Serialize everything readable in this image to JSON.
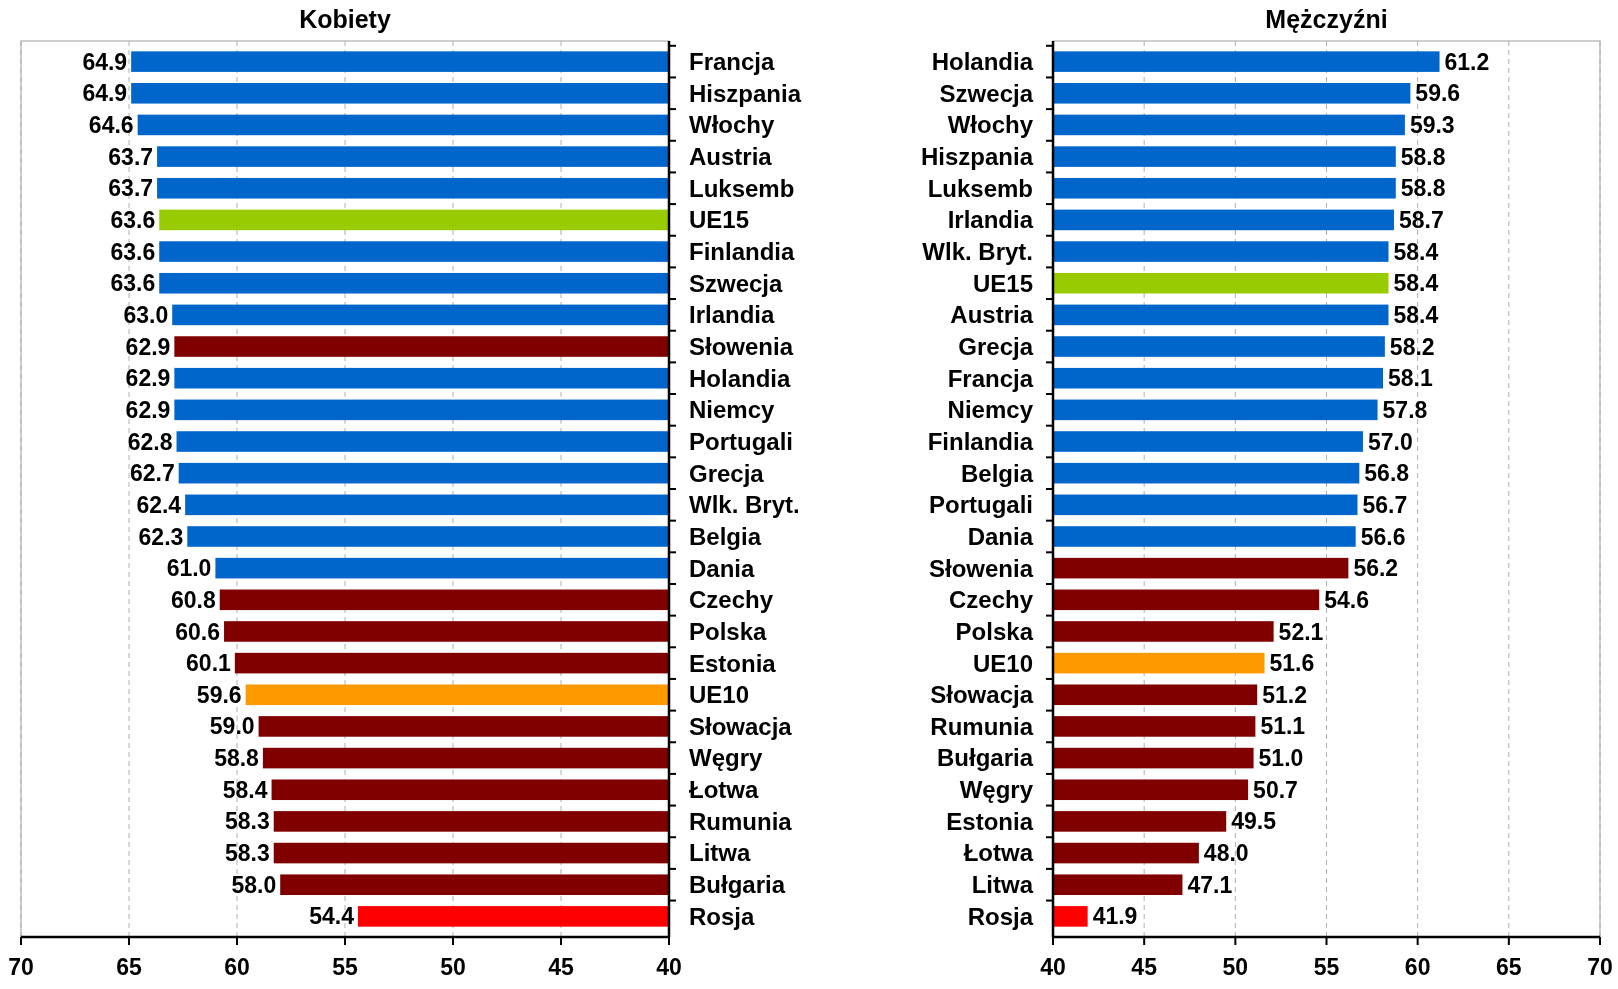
{
  "chart_data": [
    {
      "type": "bar",
      "orientation": "horizontal",
      "title": "Kobiety",
      "categories": [
        "Francja",
        "Hiszpania",
        "Włochy",
        "Austria",
        "Luksemb",
        "UE15",
        "Finlandia",
        "Szwecja",
        "Irlandia",
        "Słowenia",
        "Holandia",
        "Niemcy",
        "Portugali",
        "Grecja",
        "Wlk. Bryt.",
        "Belgia",
        "Dania",
        "Czechy",
        "Polska",
        "Estonia",
        "UE10",
        "Słowacja",
        "Węgry",
        "Łotwa",
        "Rumunia",
        "Litwa",
        "Bułgaria",
        "Rosja"
      ],
      "values": [
        64.9,
        64.9,
        64.6,
        63.7,
        63.7,
        63.6,
        63.6,
        63.6,
        63.0,
        62.9,
        62.9,
        62.9,
        62.8,
        62.7,
        62.4,
        62.3,
        61.0,
        60.8,
        60.6,
        60.1,
        59.6,
        59.0,
        58.8,
        58.4,
        58.3,
        58.3,
        58.0,
        54.4
      ],
      "value_labels": [
        "64.9",
        "64.9",
        "64.6",
        "63.7",
        "63.7",
        "63.6",
        "63.6",
        "63.6",
        "63.0",
        "62.9",
        "62.9",
        "62.9",
        "62.8",
        "62.7",
        "62.4",
        "62.3",
        "61.0",
        "60.8",
        "60.6",
        "60.1",
        "59.6",
        "59.0",
        "58.8",
        "58.4",
        "58.3",
        "58.3",
        "58.0",
        "54.4"
      ],
      "colors": [
        "#0066cc",
        "#0066cc",
        "#0066cc",
        "#0066cc",
        "#0066cc",
        "#99cc00",
        "#0066cc",
        "#0066cc",
        "#0066cc",
        "#800000",
        "#0066cc",
        "#0066cc",
        "#0066cc",
        "#0066cc",
        "#0066cc",
        "#0066cc",
        "#0066cc",
        "#800000",
        "#800000",
        "#800000",
        "#ff9900",
        "#800000",
        "#800000",
        "#800000",
        "#800000",
        "#800000",
        "#800000",
        "#ff0000"
      ],
      "xlim": [
        70,
        40
      ],
      "xticks": [
        70,
        65,
        60,
        55,
        50,
        45,
        40
      ],
      "grid": "x"
    },
    {
      "type": "bar",
      "orientation": "horizontal",
      "title": "Mężczyźni",
      "categories": [
        "Holandia",
        "Szwecja",
        "Włochy",
        "Hiszpania",
        "Luksemb",
        "Irlandia",
        "Wlk. Bryt.",
        "UE15",
        "Austria",
        "Grecja",
        "Francja",
        "Niemcy",
        "Finlandia",
        "Belgia",
        "Portugali",
        "Dania",
        "Słowenia",
        "Czechy",
        "Polska",
        "UE10",
        "Słowacja",
        "Rumunia",
        "Bułgaria",
        "Węgry",
        "Estonia",
        "Łotwa",
        "Litwa",
        "Rosja"
      ],
      "values": [
        61.2,
        59.6,
        59.3,
        58.8,
        58.8,
        58.7,
        58.4,
        58.4,
        58.4,
        58.2,
        58.1,
        57.8,
        57.0,
        56.8,
        56.7,
        56.6,
        56.2,
        54.6,
        52.1,
        51.6,
        51.2,
        51.1,
        51.0,
        50.7,
        49.5,
        48.0,
        47.1,
        41.9
      ],
      "value_labels": [
        "61.2",
        "59.6",
        "59.3",
        "58.8",
        "58.8",
        "58.7",
        "58.4",
        "58.4",
        "58.4",
        "58.2",
        "58.1",
        "57.8",
        "57.0",
        "56.8",
        "56.7",
        "56.6",
        "56.2",
        "54.6",
        "52.1",
        "51.6",
        "51.2",
        "51.1",
        "51.0",
        "50.7",
        "49.5",
        "48.0",
        "47.1",
        "41.9"
      ],
      "colors": [
        "#0066cc",
        "#0066cc",
        "#0066cc",
        "#0066cc",
        "#0066cc",
        "#0066cc",
        "#0066cc",
        "#99cc00",
        "#0066cc",
        "#0066cc",
        "#0066cc",
        "#0066cc",
        "#0066cc",
        "#0066cc",
        "#0066cc",
        "#0066cc",
        "#800000",
        "#800000",
        "#800000",
        "#ff9900",
        "#800000",
        "#800000",
        "#800000",
        "#800000",
        "#800000",
        "#800000",
        "#800000",
        "#ff0000"
      ],
      "xlim": [
        40,
        70
      ],
      "xticks": [
        40,
        45,
        50,
        55,
        60,
        65,
        70
      ],
      "grid": "x"
    }
  ]
}
